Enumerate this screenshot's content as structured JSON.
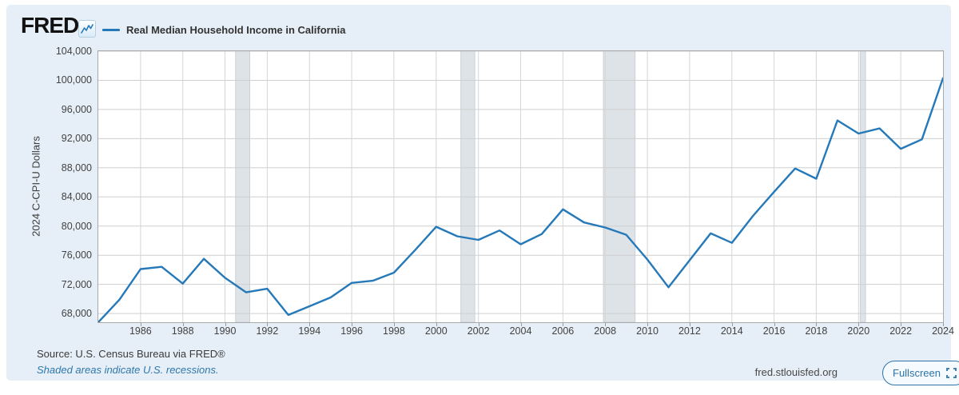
{
  "header": {
    "logo_text": "FRED",
    "logo_reg": "®",
    "legend_label": "Real Median Household Income in California"
  },
  "chart_data": {
    "type": "line",
    "title": "Real Median Household Income in California",
    "xlabel": "",
    "ylabel": "2024 C-CPI-U Dollars",
    "xlim": [
      1984,
      2024
    ],
    "ylim": [
      66800,
      104000
    ],
    "grid": true,
    "legend_position": "top-left",
    "x": [
      1984,
      1985,
      1986,
      1987,
      1988,
      1989,
      1990,
      1991,
      1992,
      1993,
      1994,
      1995,
      1996,
      1997,
      1998,
      1999,
      2000,
      2001,
      2002,
      2003,
      2004,
      2005,
      2006,
      2007,
      2008,
      2009,
      2010,
      2011,
      2012,
      2013,
      2014,
      2015,
      2016,
      2017,
      2018,
      2019,
      2020,
      2021,
      2022,
      2023,
      2024
    ],
    "values": [
      66800,
      69900,
      74100,
      74400,
      72100,
      75500,
      72900,
      70900,
      71400,
      67800,
      69000,
      70200,
      72200,
      72500,
      73600,
      76700,
      79900,
      78600,
      78100,
      79400,
      77500,
      78900,
      82300,
      80500,
      79800,
      78800,
      75400,
      71600,
      75300,
      79000,
      77700,
      81400,
      84700,
      87900,
      86500,
      94500,
      92700,
      93400,
      90600,
      91900,
      100300
    ],
    "y_ticks": [
      68000,
      72000,
      76000,
      80000,
      84000,
      88000,
      92000,
      96000,
      100000,
      104000
    ],
    "y_tick_labels": [
      "68,000",
      "72,000",
      "76,000",
      "80,000",
      "84,000",
      "88,000",
      "92,000",
      "96,000",
      "100,000",
      "104,000"
    ],
    "x_ticks": [
      1986,
      1988,
      1990,
      1992,
      1994,
      1996,
      1998,
      2000,
      2002,
      2004,
      2006,
      2008,
      2010,
      2012,
      2014,
      2016,
      2018,
      2020,
      2022,
      2024
    ],
    "x_tick_labels": [
      "1986",
      "1988",
      "1990",
      "1992",
      "1994",
      "1996",
      "1998",
      "2000",
      "2002",
      "2004",
      "2006",
      "2008",
      "2010",
      "2012",
      "2014",
      "2016",
      "2018",
      "2020",
      "2022",
      "2024"
    ],
    "recessions": [
      [
        1990.5,
        1991.17
      ],
      [
        2001.17,
        2001.83
      ],
      [
        2007.92,
        2009.42
      ],
      [
        2020.08,
        2020.33
      ]
    ]
  },
  "footer": {
    "source": "Source: U.S. Census Bureau via FRED®",
    "recession_note": "Shaded areas indicate U.S. recessions.",
    "site": "fred.stlouisfed.org",
    "fullscreen_label": "Fullscreen"
  },
  "colors": {
    "line": "#2579b9",
    "card_bg": "#e6eff7",
    "plot_bg": "#ffffff",
    "grid_h": "#cfcfcf",
    "grid_v": "#d6d6d6",
    "recession_band": "#dee3e8",
    "recession_band_edge": "#c9d0d7",
    "axis_text": "#424242",
    "note_text": "#2e77ad",
    "button": "#2e74a8"
  }
}
